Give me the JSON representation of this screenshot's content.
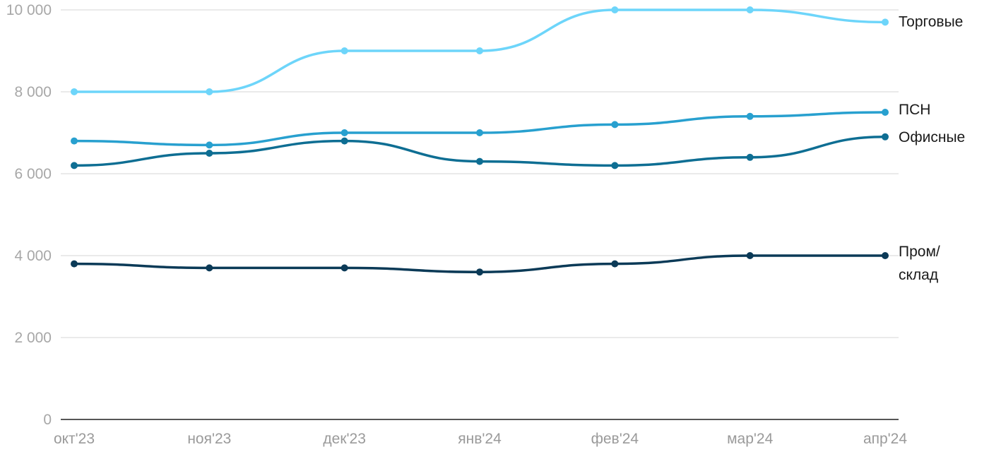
{
  "chart_data": {
    "type": "line",
    "categories": [
      "окт'23",
      "ноя'23",
      "дек'23",
      "янв'24",
      "фев'24",
      "мар'24",
      "апр'24"
    ],
    "ylim": [
      0,
      10000
    ],
    "yticks": [
      "0",
      "2 000",
      "4 000",
      "6 000",
      "8 000",
      "10 000"
    ],
    "grid": true,
    "legend": "inline-right",
    "series": [
      {
        "name": "Торговые",
        "label_lines": [
          "Торговые"
        ],
        "color": "#6dd5fa",
        "values": [
          8000,
          8000,
          9000,
          9000,
          10000,
          10000,
          9700
        ]
      },
      {
        "name": "ПСН",
        "label_lines": [
          "ПСН"
        ],
        "color": "#28a0cf",
        "values": [
          6800,
          6700,
          7000,
          7000,
          7200,
          7400,
          7500
        ]
      },
      {
        "name": "Офисные",
        "label_lines": [
          "Офисные"
        ],
        "color": "#0e6e93",
        "values": [
          6200,
          6500,
          6800,
          6300,
          6200,
          6400,
          6900
        ]
      },
      {
        "name": "Пром/склад",
        "label_lines": [
          "Пром/",
          "склад"
        ],
        "color": "#0b3a57",
        "values": [
          3800,
          3700,
          3700,
          3600,
          3800,
          4000,
          4000
        ]
      }
    ]
  }
}
